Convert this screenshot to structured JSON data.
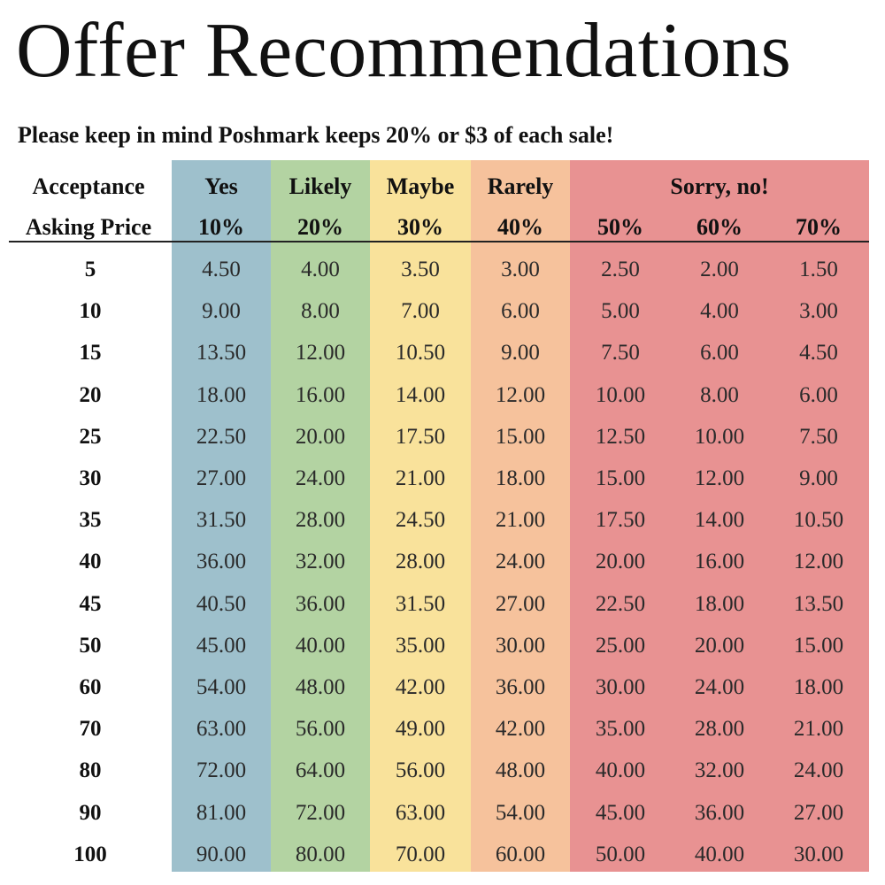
{
  "title": "Offer Recommendations",
  "subtitle": "Please keep in mind Poshmark keeps 20% or $3 of each sale!",
  "colors": {
    "yes": "#9ec0cc",
    "likely": "#b3d3a2",
    "maybe": "#f9e29b",
    "rarely": "#f6c29c",
    "sorry": "#e89292"
  },
  "headers": {
    "acceptance_label": "Acceptance",
    "asking_price_label": "Asking Price",
    "acceptance": [
      "Yes",
      "Likely",
      "Maybe",
      "Rarely",
      "Sorry, no!"
    ],
    "percents": [
      "10%",
      "20%",
      "30%",
      "40%",
      "50%",
      "60%",
      "70%"
    ]
  },
  "rows": [
    {
      "price": "5",
      "values": [
        "4.50",
        "4.00",
        "3.50",
        "3.00",
        "2.50",
        "2.00",
        "1.50"
      ]
    },
    {
      "price": "10",
      "values": [
        "9.00",
        "8.00",
        "7.00",
        "6.00",
        "5.00",
        "4.00",
        "3.00"
      ]
    },
    {
      "price": "15",
      "values": [
        "13.50",
        "12.00",
        "10.50",
        "9.00",
        "7.50",
        "6.00",
        "4.50"
      ]
    },
    {
      "price": "20",
      "values": [
        "18.00",
        "16.00",
        "14.00",
        "12.00",
        "10.00",
        "8.00",
        "6.00"
      ]
    },
    {
      "price": "25",
      "values": [
        "22.50",
        "20.00",
        "17.50",
        "15.00",
        "12.50",
        "10.00",
        "7.50"
      ]
    },
    {
      "price": "30",
      "values": [
        "27.00",
        "24.00",
        "21.00",
        "18.00",
        "15.00",
        "12.00",
        "9.00"
      ]
    },
    {
      "price": "35",
      "values": [
        "31.50",
        "28.00",
        "24.50",
        "21.00",
        "17.50",
        "14.00",
        "10.50"
      ]
    },
    {
      "price": "40",
      "values": [
        "36.00",
        "32.00",
        "28.00",
        "24.00",
        "20.00",
        "16.00",
        "12.00"
      ]
    },
    {
      "price": "45",
      "values": [
        "40.50",
        "36.00",
        "31.50",
        "27.00",
        "22.50",
        "18.00",
        "13.50"
      ]
    },
    {
      "price": "50",
      "values": [
        "45.00",
        "40.00",
        "35.00",
        "30.00",
        "25.00",
        "20.00",
        "15.00"
      ]
    },
    {
      "price": "60",
      "values": [
        "54.00",
        "48.00",
        "42.00",
        "36.00",
        "30.00",
        "24.00",
        "18.00"
      ]
    },
    {
      "price": "70",
      "values": [
        "63.00",
        "56.00",
        "49.00",
        "42.00",
        "35.00",
        "28.00",
        "21.00"
      ]
    },
    {
      "price": "80",
      "values": [
        "72.00",
        "64.00",
        "56.00",
        "48.00",
        "40.00",
        "32.00",
        "24.00"
      ]
    },
    {
      "price": "90",
      "values": [
        "81.00",
        "72.00",
        "63.00",
        "54.00",
        "45.00",
        "36.00",
        "27.00"
      ]
    },
    {
      "price": "100",
      "values": [
        "90.00",
        "80.00",
        "70.00",
        "60.00",
        "50.00",
        "40.00",
        "30.00"
      ]
    }
  ]
}
